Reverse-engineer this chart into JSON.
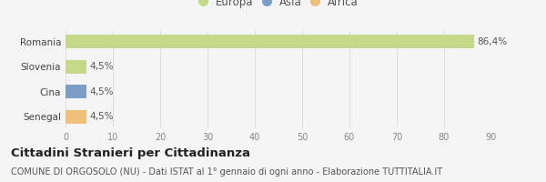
{
  "categories": [
    "Senegal",
    "Cina",
    "Slovenia",
    "Romania"
  ],
  "values": [
    4.5,
    4.5,
    4.5,
    86.4
  ],
  "bar_colors": [
    "#f0c07a",
    "#7b9ec7",
    "#c5d98a",
    "#c5d98a"
  ],
  "labels": [
    "4,5%",
    "4,5%",
    "4,5%",
    "86,4%"
  ],
  "xlim": [
    0,
    90
  ],
  "xticks": [
    0,
    10,
    20,
    30,
    40,
    50,
    60,
    70,
    80,
    90
  ],
  "legend_entries": [
    {
      "label": "Europa",
      "color": "#c5d98a"
    },
    {
      "label": "Asia",
      "color": "#7b9ec7"
    },
    {
      "label": "Africa",
      "color": "#f0c07a"
    }
  ],
  "title": "Cittadini Stranieri per Cittadinanza",
  "subtitle": "COMUNE DI ORGOSOLO (NU) - Dati ISTAT al 1° gennaio di ogni anno - Elaborazione TUTTITALIA.IT",
  "bg_color": "#f5f5f5",
  "bar_height": 0.55,
  "label_fontsize": 7.5,
  "tick_fontsize": 7,
  "category_fontsize": 7.5,
  "title_fontsize": 9.5,
  "subtitle_fontsize": 7
}
